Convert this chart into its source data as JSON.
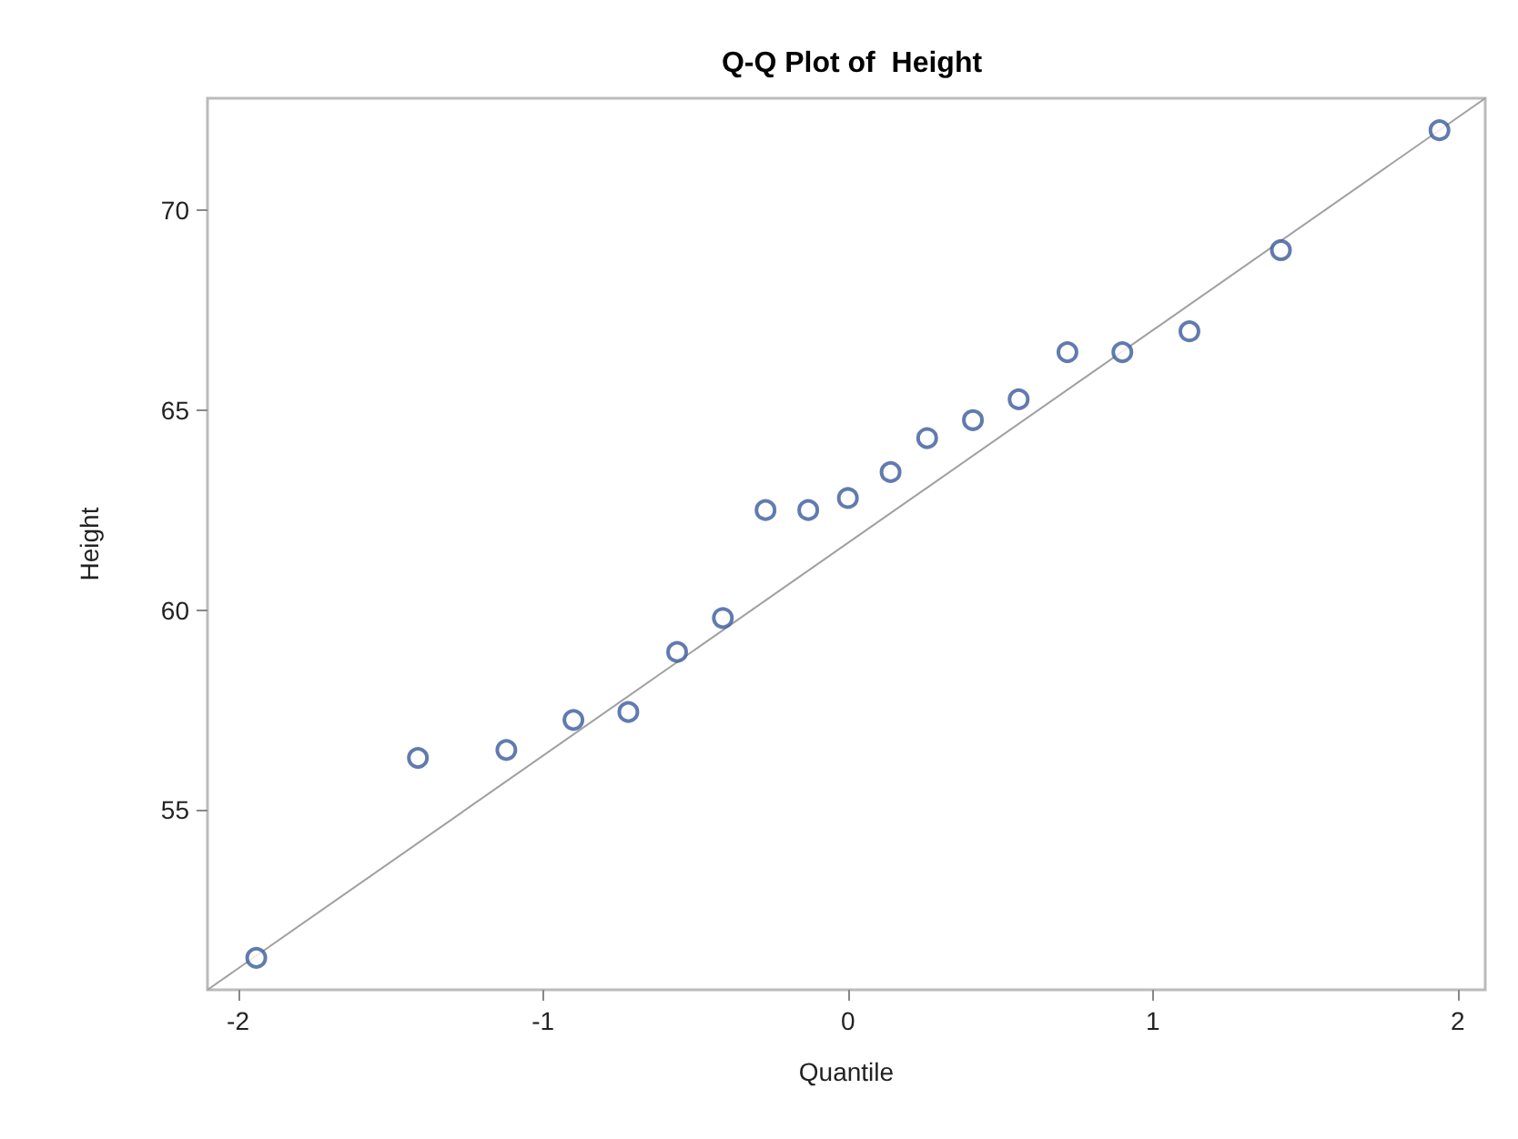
{
  "chart_data": {
    "type": "scatter",
    "title": "Q-Q Plot of  Height",
    "xlabel": "Quantile",
    "ylabel": "Height",
    "xlim": [
      -2.1,
      2.09
    ],
    "xticks": [
      -2,
      -1,
      0,
      1,
      2
    ],
    "ylim": [
      50.5,
      72.8
    ],
    "yticks": [
      55,
      60,
      65,
      70
    ],
    "grid": false,
    "marker": "circle",
    "series": [
      {
        "color": "#3a5a9c",
        "x": [
          -1.94,
          -1.41,
          -1.12,
          -0.9,
          -0.72,
          -0.56,
          -0.41,
          -0.27,
          -0.13,
          0,
          0.14,
          0.26,
          0.41,
          0.56,
          0.72,
          0.9,
          1.12,
          1.42,
          1.94
        ],
        "values": [
          51.3,
          56.3,
          56.5,
          57.25,
          57.45,
          58.95,
          59.8,
          62.5,
          62.5,
          62.8,
          63.45,
          64.3,
          64.75,
          65.27,
          66.45,
          66.45,
          66.97,
          69.0,
          72.0
        ]
      },
      {
        "type": "line",
        "color": "#a0a0a0",
        "marker": "none",
        "line_style": "solid",
        "x": [
          -2.1,
          2.09
        ],
        "values": [
          50.5,
          72.8
        ]
      }
    ]
  }
}
